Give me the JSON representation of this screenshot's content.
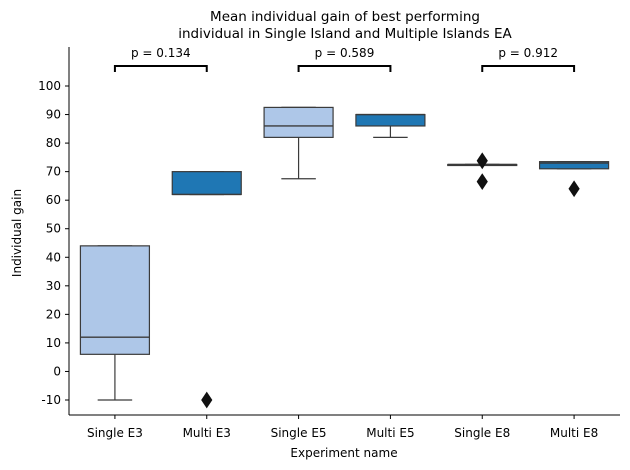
{
  "chart_data": {
    "type": "box",
    "title_lines": [
      "Mean individual gain of best performing",
      "individual in Single Island and Multiple Islands EA"
    ],
    "xlabel": "Experiment name",
    "ylabel": "Individual gain",
    "ylim": [
      -15,
      112
    ],
    "yticks": [
      -10,
      0,
      10,
      20,
      30,
      40,
      50,
      60,
      70,
      80,
      90,
      100
    ],
    "grid": false,
    "categories": [
      "Single E3",
      "Multi E3",
      "Single E5",
      "Multi E5",
      "Single E8",
      "Multi E8"
    ],
    "boxes": [
      {
        "name": "Single E3",
        "whisker_low": -10,
        "q1": 6,
        "median": 12,
        "q3": 44,
        "whisker_high": 44,
        "outliers": [],
        "color": "#aec7e8"
      },
      {
        "name": "Multi E3",
        "whisker_low": 62,
        "q1": 62,
        "median": 62,
        "q3": 70,
        "whisker_high": 70,
        "outliers": [
          -10
        ],
        "color": "#1f77b4"
      },
      {
        "name": "Single E5",
        "whisker_low": 67.5,
        "q1": 82,
        "median": 86,
        "q3": 92.5,
        "whisker_high": 92.5,
        "outliers": [],
        "color": "#aec7e8"
      },
      {
        "name": "Multi E5",
        "whisker_low": 82,
        "q1": 86,
        "median": 90,
        "q3": 90,
        "whisker_high": 90,
        "outliers": [],
        "color": "#1f77b4"
      },
      {
        "name": "Single E8",
        "whisker_low": 72.5,
        "q1": 72.5,
        "median": 72.5,
        "q3": 72.5,
        "whisker_high": 72.5,
        "outliers": [
          73.8,
          66.5
        ],
        "color": "#aec7e8"
      },
      {
        "name": "Multi E8",
        "whisker_low": 71,
        "q1": 71,
        "median": 73,
        "q3": 73.5,
        "whisker_high": 73.5,
        "outliers": [
          64
        ],
        "color": "#1f77b4"
      }
    ],
    "annotations": [
      {
        "pair": [
          "Single E3",
          "Multi E3"
        ],
        "text": "p = 0.134"
      },
      {
        "pair": [
          "Single E5",
          "Multi E5"
        ],
        "text": "p = 0.589"
      },
      {
        "pair": [
          "Single E8",
          "Multi E8"
        ],
        "text": "p = 0.912"
      }
    ]
  }
}
